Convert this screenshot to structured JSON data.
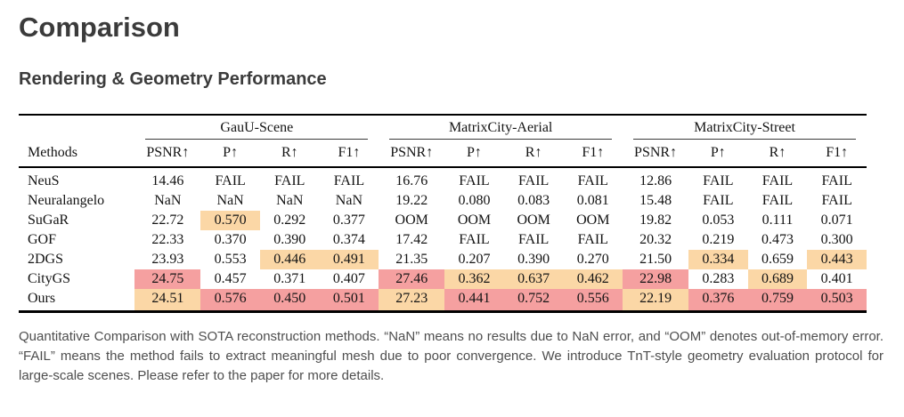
{
  "page": {
    "title": "Comparison",
    "subtitle": "Rendering & Geometry Performance"
  },
  "table": {
    "methods_header": "Methods",
    "groups": [
      {
        "label": "GauU-Scene"
      },
      {
        "label": "MatrixCity-Aerial"
      },
      {
        "label": "MatrixCity-Street"
      }
    ],
    "metric_headers": [
      "PSNR↑",
      "P↑",
      "R↑",
      "F1↑"
    ],
    "highlight_colors": {
      "best": "#f5a0a0",
      "second": "#fbd7a6"
    },
    "highlight_legend": {
      "best": "red = best result",
      "second": "orange = second-best result"
    },
    "rows": [
      {
        "method": "NeuS",
        "cells": [
          {
            "v": "14.46",
            "h": null
          },
          {
            "v": "FAIL",
            "h": null
          },
          {
            "v": "FAIL",
            "h": null
          },
          {
            "v": "FAIL",
            "h": null
          },
          {
            "v": "16.76",
            "h": null
          },
          {
            "v": "FAIL",
            "h": null
          },
          {
            "v": "FAIL",
            "h": null
          },
          {
            "v": "FAIL",
            "h": null
          },
          {
            "v": "12.86",
            "h": null
          },
          {
            "v": "FAIL",
            "h": null
          },
          {
            "v": "FAIL",
            "h": null
          },
          {
            "v": "FAIL",
            "h": null
          }
        ]
      },
      {
        "method": "Neuralangelo",
        "cells": [
          {
            "v": "NaN",
            "h": null
          },
          {
            "v": "NaN",
            "h": null
          },
          {
            "v": "NaN",
            "h": null
          },
          {
            "v": "NaN",
            "h": null
          },
          {
            "v": "19.22",
            "h": null
          },
          {
            "v": "0.080",
            "h": null
          },
          {
            "v": "0.083",
            "h": null
          },
          {
            "v": "0.081",
            "h": null
          },
          {
            "v": "15.48",
            "h": null
          },
          {
            "v": "FAIL",
            "h": null
          },
          {
            "v": "FAIL",
            "h": null
          },
          {
            "v": "FAIL",
            "h": null
          }
        ]
      },
      {
        "method": "SuGaR",
        "cells": [
          {
            "v": "22.72",
            "h": null
          },
          {
            "v": "0.570",
            "h": "second"
          },
          {
            "v": "0.292",
            "h": null
          },
          {
            "v": "0.377",
            "h": null
          },
          {
            "v": "OOM",
            "h": null
          },
          {
            "v": "OOM",
            "h": null
          },
          {
            "v": "OOM",
            "h": null
          },
          {
            "v": "OOM",
            "h": null
          },
          {
            "v": "19.82",
            "h": null
          },
          {
            "v": "0.053",
            "h": null
          },
          {
            "v": "0.111",
            "h": null
          },
          {
            "v": "0.071",
            "h": null
          }
        ]
      },
      {
        "method": "GOF",
        "cells": [
          {
            "v": "22.33",
            "h": null
          },
          {
            "v": "0.370",
            "h": null
          },
          {
            "v": "0.390",
            "h": null
          },
          {
            "v": "0.374",
            "h": null
          },
          {
            "v": "17.42",
            "h": null
          },
          {
            "v": "FAIL",
            "h": null
          },
          {
            "v": "FAIL",
            "h": null
          },
          {
            "v": "FAIL",
            "h": null
          },
          {
            "v": "20.32",
            "h": null
          },
          {
            "v": "0.219",
            "h": null
          },
          {
            "v": "0.473",
            "h": null
          },
          {
            "v": "0.300",
            "h": null
          }
        ]
      },
      {
        "method": "2DGS",
        "cells": [
          {
            "v": "23.93",
            "h": null
          },
          {
            "v": "0.553",
            "h": null
          },
          {
            "v": "0.446",
            "h": "second"
          },
          {
            "v": "0.491",
            "h": "second"
          },
          {
            "v": "21.35",
            "h": null
          },
          {
            "v": "0.207",
            "h": null
          },
          {
            "v": "0.390",
            "h": null
          },
          {
            "v": "0.270",
            "h": null
          },
          {
            "v": "21.50",
            "h": null
          },
          {
            "v": "0.334",
            "h": "second"
          },
          {
            "v": "0.659",
            "h": null
          },
          {
            "v": "0.443",
            "h": "second"
          }
        ]
      },
      {
        "method": "CityGS",
        "cells": [
          {
            "v": "24.75",
            "h": "best"
          },
          {
            "v": "0.457",
            "h": null
          },
          {
            "v": "0.371",
            "h": null
          },
          {
            "v": "0.407",
            "h": null
          },
          {
            "v": "27.46",
            "h": "best"
          },
          {
            "v": "0.362",
            "h": "second"
          },
          {
            "v": "0.637",
            "h": "second"
          },
          {
            "v": "0.462",
            "h": "second"
          },
          {
            "v": "22.98",
            "h": "best"
          },
          {
            "v": "0.283",
            "h": null
          },
          {
            "v": "0.689",
            "h": "second"
          },
          {
            "v": "0.401",
            "h": null
          }
        ]
      },
      {
        "method": "Ours",
        "cells": [
          {
            "v": "24.51",
            "h": "second"
          },
          {
            "v": "0.576",
            "h": "best"
          },
          {
            "v": "0.450",
            "h": "best"
          },
          {
            "v": "0.501",
            "h": "best"
          },
          {
            "v": "27.23",
            "h": "second"
          },
          {
            "v": "0.441",
            "h": "best"
          },
          {
            "v": "0.752",
            "h": "best"
          },
          {
            "v": "0.556",
            "h": "best"
          },
          {
            "v": "22.19",
            "h": "second"
          },
          {
            "v": "0.376",
            "h": "best"
          },
          {
            "v": "0.759",
            "h": "best"
          },
          {
            "v": "0.503",
            "h": "best"
          }
        ]
      }
    ]
  },
  "caption": {
    "text": "Quantitative Comparison with SOTA reconstruction methods. “NaN” means no results due to NaN error, and “OOM” denotes out-of-memory error. “FAIL” means the method fails to extract meaningful mesh due to poor convergence. We introduce TnT-style geometry evaluation protocol for large-scale scenes. Please refer to the paper for more details."
  }
}
